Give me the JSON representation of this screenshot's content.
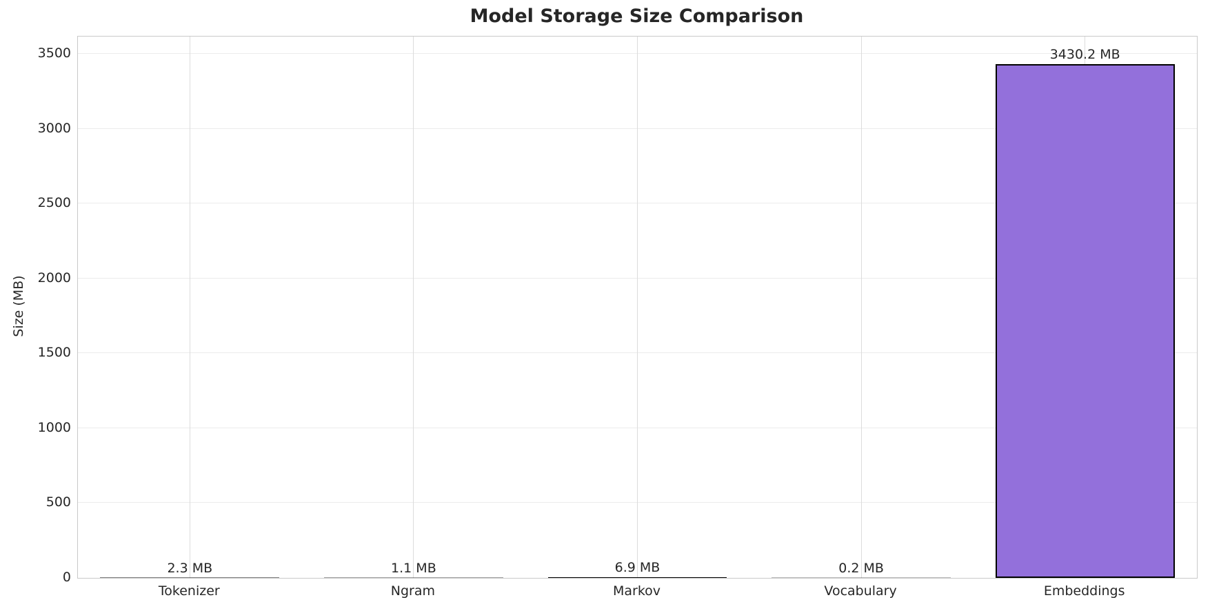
{
  "chart_data": {
    "type": "bar",
    "title": "Model Storage Size Comparison",
    "xlabel": "",
    "ylabel": "Size (MB)",
    "categories": [
      "Tokenizer",
      "Ngram",
      "Markov",
      "Vocabulary",
      "Embeddings"
    ],
    "values": [
      2.3,
      1.1,
      6.9,
      0.2,
      3430.2
    ],
    "value_labels": [
      "2.3 MB",
      "1.1 MB",
      "6.9 MB",
      "0.2 MB",
      "3430.2 MB"
    ],
    "unit": "MB",
    "yticks": [
      0,
      500,
      1000,
      1500,
      2000,
      2500,
      3000,
      3500
    ],
    "ylim": [
      0,
      3615
    ],
    "grid": true,
    "legend_position": "none",
    "bar_color": "#9370db",
    "bar_edge_color": "#000000",
    "grid_color_horizontal": "#ececec",
    "grid_color_vertical": "#dcdcdc",
    "text_color": "#262626",
    "background_color": "#ffffff"
  }
}
